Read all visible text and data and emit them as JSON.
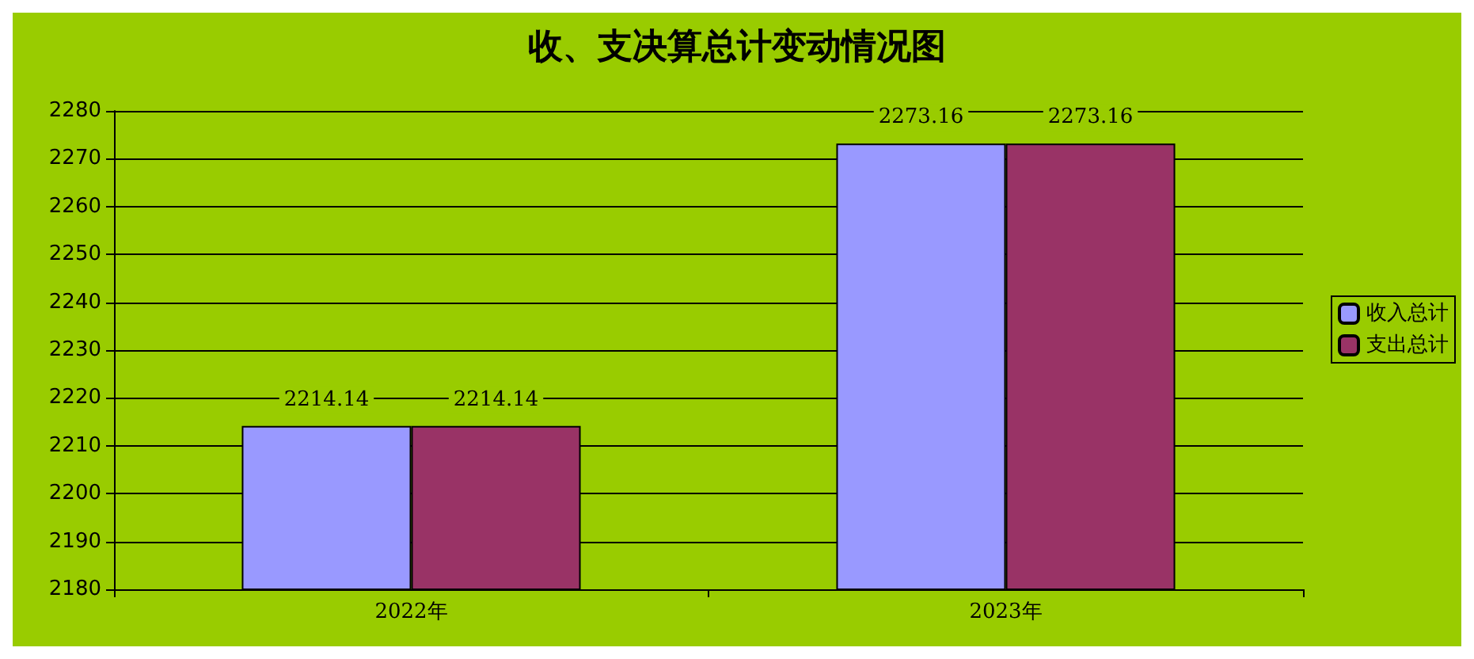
{
  "chart_data": {
    "type": "bar",
    "title": "收、支决算总计变动情况图",
    "categories": [
      "2022年",
      "2023年"
    ],
    "series": [
      {
        "name": "收入总计",
        "color": "#9999ff",
        "values": [
          2214.14,
          2273.16
        ]
      },
      {
        "name": "支出总计",
        "color": "#993366",
        "values": [
          2214.14,
          2273.16
        ]
      }
    ],
    "ylim": [
      2180,
      2280
    ],
    "yticks": [
      2180,
      2190,
      2200,
      2210,
      2220,
      2230,
      2240,
      2250,
      2260,
      2270,
      2280
    ],
    "grid": "y",
    "legend": "right",
    "data_labels": true
  }
}
